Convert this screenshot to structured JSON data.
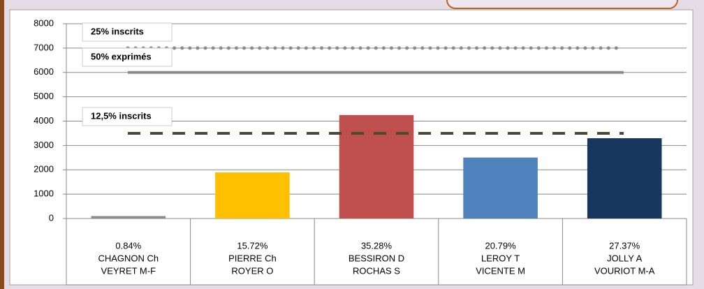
{
  "chart_data": {
    "type": "bar",
    "categories": [
      [
        "CHAGNON Ch",
        "VEYRET M-F"
      ],
      [
        "PIERRE Ch",
        "ROYER O"
      ],
      [
        "BESSIRON D",
        "ROCHAS S"
      ],
      [
        "LEROY T",
        "VICENTE M"
      ],
      [
        "JOLLY A",
        "VOURIOT M-A"
      ]
    ],
    "values": [
      101,
      1894,
      4250,
      2504,
      3297
    ],
    "shares": [
      {
        "value": 0.84,
        "label": "0.84%"
      },
      {
        "value": 15.72,
        "label": "15.72%"
      },
      {
        "value": 35.28,
        "label": "35.28%"
      },
      {
        "value": 20.79,
        "label": "20.79%"
      },
      {
        "value": 27.37,
        "label": "27.37%"
      }
    ],
    "colors": [
      "#8c8c8c",
      "#ffc000",
      "#c0504d",
      "#4f81bd",
      "#17375e"
    ],
    "reference_lines": [
      {
        "label": "25% inscrits",
        "value": 7000,
        "style": "dotted",
        "color": "#8c8c8c"
      },
      {
        "label": "50% exprimés",
        "value": 6000,
        "style": "solid",
        "color": "#8c8c8c"
      },
      {
        "label": "12,5% inscrits",
        "value": 3500,
        "style": "dashed",
        "color": "#4a4a32"
      }
    ],
    "ylim": [
      0,
      8000
    ],
    "yticks": [
      0,
      1000,
      2000,
      3000,
      4000,
      5000,
      6000,
      7000,
      8000
    ],
    "grid": true
  }
}
